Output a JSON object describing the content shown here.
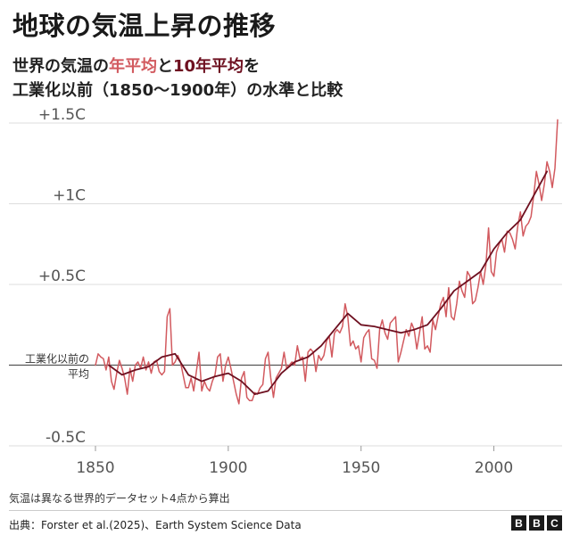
{
  "header": {
    "title": "地球の気温上昇の推移",
    "subtitle_part1": "世界の気温の",
    "subtitle_annual": "年平均",
    "subtitle_and": "と",
    "subtitle_decadal": "10年平均",
    "subtitle_part2": "を",
    "subtitle_line2": "工業化以前（1850〜1900年）の水準と比較"
  },
  "footer": {
    "note": "気温は異なる世界的データセット4点から算出",
    "source": "出典：Forster et al.(2025)、Earth System Science Data",
    "logo_letters": [
      "B",
      "B",
      "C"
    ]
  },
  "colors": {
    "annual": "#d25a5f",
    "decadal": "#6e1020",
    "grid": "#dddddd",
    "baseline": "#555555"
  },
  "chart_data": {
    "type": "line",
    "title": "地球の気温上昇の推移",
    "xlabel": "",
    "ylabel": "",
    "xlim": [
      1850,
      2024
    ],
    "ylim": [
      -0.5,
      1.5
    ],
    "grid": true,
    "baseline_label_line1": "工業化以前の",
    "baseline_label_line2": "平均",
    "y_ticks": [
      {
        "value": 1.5,
        "label": "+1.5C"
      },
      {
        "value": 1.0,
        "label": "+1C"
      },
      {
        "value": 0.5,
        "label": "+0.5C"
      },
      {
        "value": -0.5,
        "label": "-0.5C"
      }
    ],
    "x_ticks": [
      {
        "value": 1850,
        "label": "1850"
      },
      {
        "value": 1900,
        "label": "1900"
      },
      {
        "value": 1950,
        "label": "1950"
      },
      {
        "value": 2000,
        "label": "2000"
      }
    ],
    "series": [
      {
        "key": "annual",
        "x": [
          1850,
          1851,
          1852,
          1853,
          1854,
          1855,
          1856,
          1857,
          1858,
          1859,
          1860,
          1861,
          1862,
          1863,
          1864,
          1865,
          1866,
          1867,
          1868,
          1869,
          1870,
          1871,
          1872,
          1873,
          1874,
          1875,
          1876,
          1877,
          1878,
          1879,
          1880,
          1881,
          1882,
          1883,
          1884,
          1885,
          1886,
          1887,
          1888,
          1889,
          1890,
          1891,
          1892,
          1893,
          1894,
          1895,
          1896,
          1897,
          1898,
          1899,
          1900,
          1901,
          1902,
          1903,
          1904,
          1905,
          1906,
          1907,
          1908,
          1909,
          1910,
          1911,
          1912,
          1913,
          1914,
          1915,
          1916,
          1917,
          1918,
          1919,
          1920,
          1921,
          1922,
          1923,
          1924,
          1925,
          1926,
          1927,
          1928,
          1929,
          1930,
          1931,
          1932,
          1933,
          1934,
          1935,
          1936,
          1937,
          1938,
          1939,
          1940,
          1941,
          1942,
          1943,
          1944,
          1945,
          1946,
          1947,
          1948,
          1949,
          1950,
          1951,
          1952,
          1953,
          1954,
          1955,
          1956,
          1957,
          1958,
          1959,
          1960,
          1961,
          1962,
          1963,
          1964,
          1965,
          1966,
          1967,
          1968,
          1969,
          1970,
          1971,
          1972,
          1973,
          1974,
          1975,
          1976,
          1977,
          1978,
          1979,
          1980,
          1981,
          1982,
          1983,
          1984,
          1985,
          1986,
          1987,
          1988,
          1989,
          1990,
          1991,
          1992,
          1993,
          1994,
          1995,
          1996,
          1997,
          1998,
          1999,
          2000,
          2001,
          2002,
          2003,
          2004,
          2005,
          2006,
          2007,
          2008,
          2009,
          2010,
          2011,
          2012,
          2013,
          2014,
          2015,
          2016,
          2017,
          2018,
          2019,
          2020,
          2021,
          2022,
          2023,
          2024
        ],
        "values": [
          0.0,
          0.07,
          0.05,
          0.04,
          -0.03,
          0.05,
          -0.1,
          -0.15,
          -0.05,
          0.03,
          -0.02,
          -0.08,
          -0.18,
          -0.02,
          -0.1,
          0.0,
          0.02,
          -0.02,
          0.05,
          -0.03,
          0.02,
          -0.05,
          0.02,
          0.03,
          -0.04,
          -0.06,
          -0.04,
          0.3,
          0.35,
          0.0,
          0.02,
          0.06,
          0.02,
          -0.06,
          -0.14,
          -0.14,
          -0.08,
          -0.16,
          -0.04,
          0.08,
          -0.16,
          -0.1,
          -0.14,
          -0.16,
          -0.1,
          -0.06,
          0.05,
          0.07,
          -0.1,
          0.0,
          0.05,
          -0.02,
          -0.1,
          -0.18,
          -0.24,
          -0.08,
          -0.04,
          -0.2,
          -0.22,
          -0.22,
          -0.17,
          -0.18,
          -0.14,
          -0.12,
          0.04,
          0.08,
          -0.08,
          -0.2,
          -0.08,
          -0.05,
          -0.02,
          0.08,
          -0.02,
          0.0,
          0.02,
          0.0,
          0.12,
          0.04,
          0.05,
          -0.1,
          0.08,
          0.1,
          0.08,
          -0.04,
          0.06,
          0.03,
          0.06,
          0.15,
          0.18,
          0.05,
          0.2,
          0.22,
          0.2,
          0.24,
          0.38,
          0.3,
          0.12,
          0.15,
          0.1,
          0.12,
          0.02,
          0.17,
          0.2,
          0.22,
          0.04,
          0.03,
          -0.02,
          0.22,
          0.28,
          0.2,
          0.16,
          0.26,
          0.28,
          0.3,
          0.02,
          0.08,
          0.15,
          0.22,
          0.18,
          0.26,
          0.22,
          0.1,
          0.2,
          0.3,
          0.1,
          0.12,
          0.08,
          0.28,
          0.22,
          0.3,
          0.38,
          0.42,
          0.3,
          0.48,
          0.3,
          0.28,
          0.38,
          0.52,
          0.46,
          0.42,
          0.58,
          0.55,
          0.38,
          0.4,
          0.48,
          0.58,
          0.5,
          0.62,
          0.85,
          0.58,
          0.55,
          0.7,
          0.75,
          0.78,
          0.7,
          0.83,
          0.82,
          0.78,
          0.72,
          0.86,
          0.95,
          0.8,
          0.86,
          0.88,
          0.92,
          1.05,
          1.2,
          1.12,
          1.02,
          1.12,
          1.26,
          1.2,
          1.1,
          1.22,
          1.52
        ]
      },
      {
        "key": "decadal",
        "x": [
          1855,
          1860,
          1865,
          1870,
          1875,
          1880,
          1885,
          1890,
          1895,
          1900,
          1905,
          1910,
          1915,
          1920,
          1925,
          1930,
          1935,
          1940,
          1945,
          1950,
          1955,
          1960,
          1965,
          1970,
          1975,
          1980,
          1985,
          1990,
          1995,
          2000,
          2005,
          2010,
          2015,
          2020
        ],
        "values": [
          0.0,
          -0.06,
          -0.03,
          -0.01,
          0.05,
          0.07,
          -0.06,
          -0.1,
          -0.07,
          -0.05,
          -0.1,
          -0.18,
          -0.16,
          -0.05,
          0.02,
          0.05,
          0.12,
          0.22,
          0.32,
          0.25,
          0.24,
          0.22,
          0.2,
          0.22,
          0.25,
          0.35,
          0.46,
          0.52,
          0.58,
          0.72,
          0.82,
          0.9,
          1.05,
          1.2
        ]
      }
    ]
  }
}
